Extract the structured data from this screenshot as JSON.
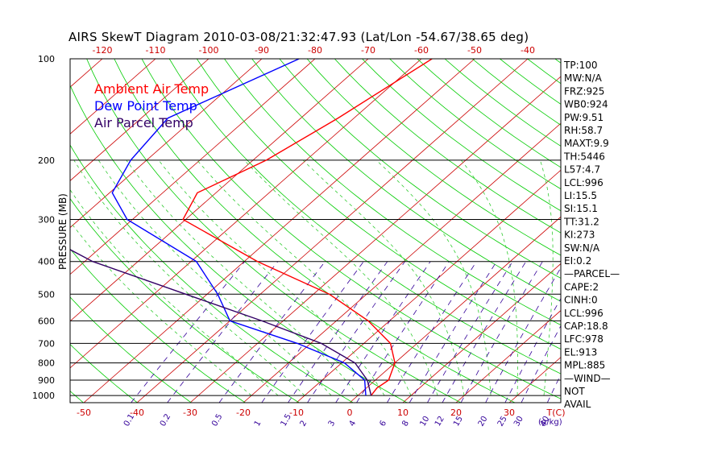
{
  "title": "AIRS SkewT Diagram 2010-03-08/21:32:47.93 (Lat/Lon -54.67/38.65 deg)",
  "ylabel": "PRESSURE (MB)",
  "colors": {
    "ambient": "#ff0000",
    "dewpoint": "#0000ff",
    "parcel": "#330066",
    "isotherm": "#cc0000",
    "dry_adiabat": "#00cc00",
    "moist_adiabat": "#33cc33",
    "mixing_ratio": "#330099",
    "isobar": "#000000",
    "frame": "#000000"
  },
  "legend": [
    {
      "label": "Ambient Air Temp",
      "color": "#ff0000"
    },
    {
      "label": "Dew Point Temp",
      "color": "#0000ff"
    },
    {
      "label": "Air Parcel Temp",
      "color": "#330066"
    }
  ],
  "top_axis_label": "",
  "bottom_axis_unit_label": "T(C)",
  "mixing_axis_unit_label": "(g/kg)",
  "stats": [
    "TP:100",
    "MW:N/A",
    "FRZ:925",
    "WB0:924",
    "PW:9.51",
    "RH:58.7",
    "MAXT:9.9",
    "TH:5446",
    "L57:4.7",
    "LCL:996",
    "LI:15.5",
    "SI:15.1",
    "TT:31.2",
    "KI:273",
    "SW:N/A",
    "EI:0.2",
    "—PARCEL—",
    "CAPE:2",
    "CINH:0",
    "LCL:996",
    "CAP:18.8",
    "LFC:978",
    "EL:913",
    "MPL:885",
    "—WIND—",
    "NOT",
    "AVAIL"
  ],
  "chart_data": {
    "type": "line",
    "title": "AIRS SkewT Diagram 2010-03-08/21:32:47.93 (Lat/Lon -54.67/38.65 deg)",
    "ylabel": "PRESSURE (MB)",
    "y_scale": "log",
    "ylim": [
      1050,
      100
    ],
    "pressure_ticks": [
      100,
      200,
      300,
      400,
      500,
      600,
      700,
      800,
      900,
      1000
    ],
    "top_temp_ticks": [
      -120,
      -110,
      -100,
      -90,
      -80,
      -70,
      -60,
      -50,
      -40
    ],
    "bottom_temp_ticks": [
      -50,
      -40,
      -30,
      -20,
      -10,
      0,
      10,
      20,
      30
    ],
    "mixing_ratio_ticks": [
      "0.1",
      "0.2",
      "0.5",
      "1",
      "1.5",
      "2",
      "3",
      "4",
      "6",
      "8",
      "10",
      "12",
      "15",
      "20",
      "25",
      "30",
      "40"
    ],
    "series": [
      {
        "name": "Ambient Air Temp",
        "points": [
          {
            "p": 100,
            "t": -58.0
          },
          {
            "p": 150,
            "t": -63.0
          },
          {
            "p": 200,
            "t": -67.5
          },
          {
            "p": 250,
            "t": -73.5
          },
          {
            "p": 300,
            "t": -70.5
          },
          {
            "p": 400,
            "t": -47.5
          },
          {
            "p": 500,
            "t": -27.0
          },
          {
            "p": 600,
            "t": -14.0
          },
          {
            "p": 700,
            "t": -5.0
          },
          {
            "p": 800,
            "t": 0.0
          },
          {
            "p": 900,
            "t": 2.5
          },
          {
            "p": 950,
            "t": 2.0
          },
          {
            "p": 1000,
            "t": 2.5
          }
        ]
      },
      {
        "name": "Dew Point Temp",
        "points": [
          {
            "p": 100,
            "t": -83.0
          },
          {
            "p": 150,
            "t": -95.0
          },
          {
            "p": 200,
            "t": -93.0
          },
          {
            "p": 250,
            "t": -89.5
          },
          {
            "p": 300,
            "t": -81.0
          },
          {
            "p": 400,
            "t": -59.0
          },
          {
            "p": 500,
            "t": -48.0
          },
          {
            "p": 600,
            "t": -40.0
          },
          {
            "p": 700,
            "t": -22.5
          },
          {
            "p": 800,
            "t": -9.5
          },
          {
            "p": 900,
            "t": -2.0
          },
          {
            "p": 1000,
            "t": 1.5
          }
        ]
      },
      {
        "name": "Air Parcel Temp",
        "points": [
          {
            "p": 100,
            "t": -157.0
          },
          {
            "p": 150,
            "t": -139.0
          },
          {
            "p": 200,
            "t": -126.0
          },
          {
            "p": 250,
            "t": -114.5
          },
          {
            "p": 300,
            "t": -102.5
          },
          {
            "p": 400,
            "t": -78.5
          },
          {
            "p": 500,
            "t": -54.0
          },
          {
            "p": 600,
            "t": -34.0
          },
          {
            "p": 700,
            "t": -18.0
          },
          {
            "p": 800,
            "t": -7.5
          },
          {
            "p": 900,
            "t": -1.5
          },
          {
            "p": 1000,
            "t": 2.5
          }
        ]
      }
    ]
  }
}
